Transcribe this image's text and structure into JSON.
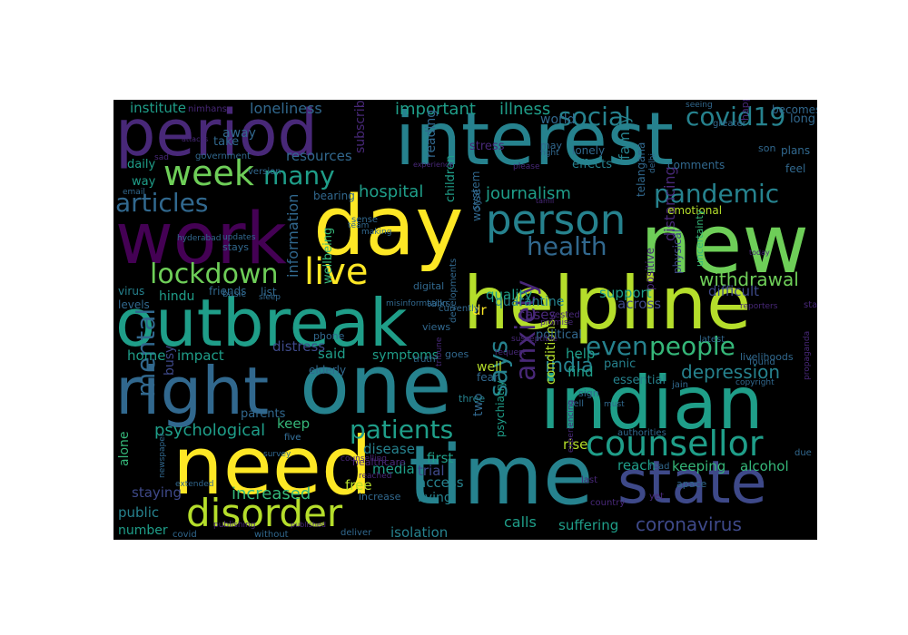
{
  "palette": {
    "deep_purple": "#440154",
    "purple": "#482878",
    "indigo": "#3e4989",
    "blue": "#31688e",
    "teal": "#26828e",
    "sea_green": "#1f9e89",
    "green": "#35b779",
    "lime": "#6ece58",
    "yellow_green": "#b5de2b",
    "yellow": "#fde725"
  },
  "words": [
    "interest",
    "period",
    "new",
    "day",
    "work",
    "helpline",
    "outbreak",
    "one",
    "right",
    "indian",
    "time",
    "need",
    "state",
    "person",
    "week",
    "live",
    "lockdown",
    "disorder",
    "counsellor",
    "people",
    "pandemic",
    "social",
    "covid19",
    "health",
    "articles",
    "many",
    "journalism",
    "mental",
    "anxiety",
    "patients",
    "says",
    "even",
    "india",
    "coronavirus",
    "depression",
    "withdrawal",
    "information",
    "psychological",
    "increased",
    "hospital",
    "important",
    "illness",
    "world",
    "family",
    "loneliness",
    "institute",
    "nimhans",
    "reading",
    "stress",
    "subscribe",
    "resources",
    "away",
    "take",
    "daily",
    "way",
    "government",
    "support",
    "quality",
    "cases",
    "quarantine",
    "distancing",
    "across",
    "impact",
    "home",
    "said",
    "symptoms",
    "distress",
    "help",
    "keep",
    "alone",
    "busy",
    "staying",
    "public",
    "number",
    "isolation",
    "calls",
    "suffering",
    "free",
    "access",
    "living",
    "trial",
    "disease",
    "media",
    "first",
    "dr",
    "rise",
    "find",
    "conditions",
    "two",
    "reach",
    "keeping",
    "alcohol",
    "friends",
    "hindu",
    "virus",
    "levels",
    "parents",
    "elderly",
    "well",
    "panic",
    "political",
    "essential",
    "difficult",
    "emotional",
    "positive",
    "physical",
    "uncertainty",
    "children",
    "system",
    "wellbeing",
    "fear",
    "truth",
    "goes",
    "dell",
    "sign",
    "three",
    "psychiatry",
    "healthcare",
    "counselling",
    "increase",
    "deliver",
    "without",
    "covid",
    "newspaper",
    "extended",
    "five",
    "survey",
    "reached",
    "vested",
    "promise",
    "talks",
    "views",
    "digital",
    "developments",
    "susceptible",
    "latest",
    "jain",
    "copyright",
    "found",
    "livelihoods",
    "propaganda",
    "due",
    "authorities",
    "must",
    "apace",
    "yet",
    "read",
    "country",
    "experiencing",
    "last",
    "becomes",
    "long",
    "plans",
    "feel",
    "son",
    "comments",
    "effects",
    "lonely",
    "may",
    "fight",
    "telangana",
    "delhi",
    "seeing",
    "greater",
    "happening",
    "version",
    "email",
    "updates",
    "stays",
    "hyderabad",
    "list",
    "basic",
    "sleep",
    "misinformation",
    "currently",
    "phone",
    "bearing",
    "sense",
    "team",
    "making",
    "worse",
    "start",
    "reporters",
    "today",
    "tribune",
    "request",
    "publishing",
    "published",
    "attacks",
    "sad",
    "please",
    "experience",
    "five",
    "tamil"
  ]
}
